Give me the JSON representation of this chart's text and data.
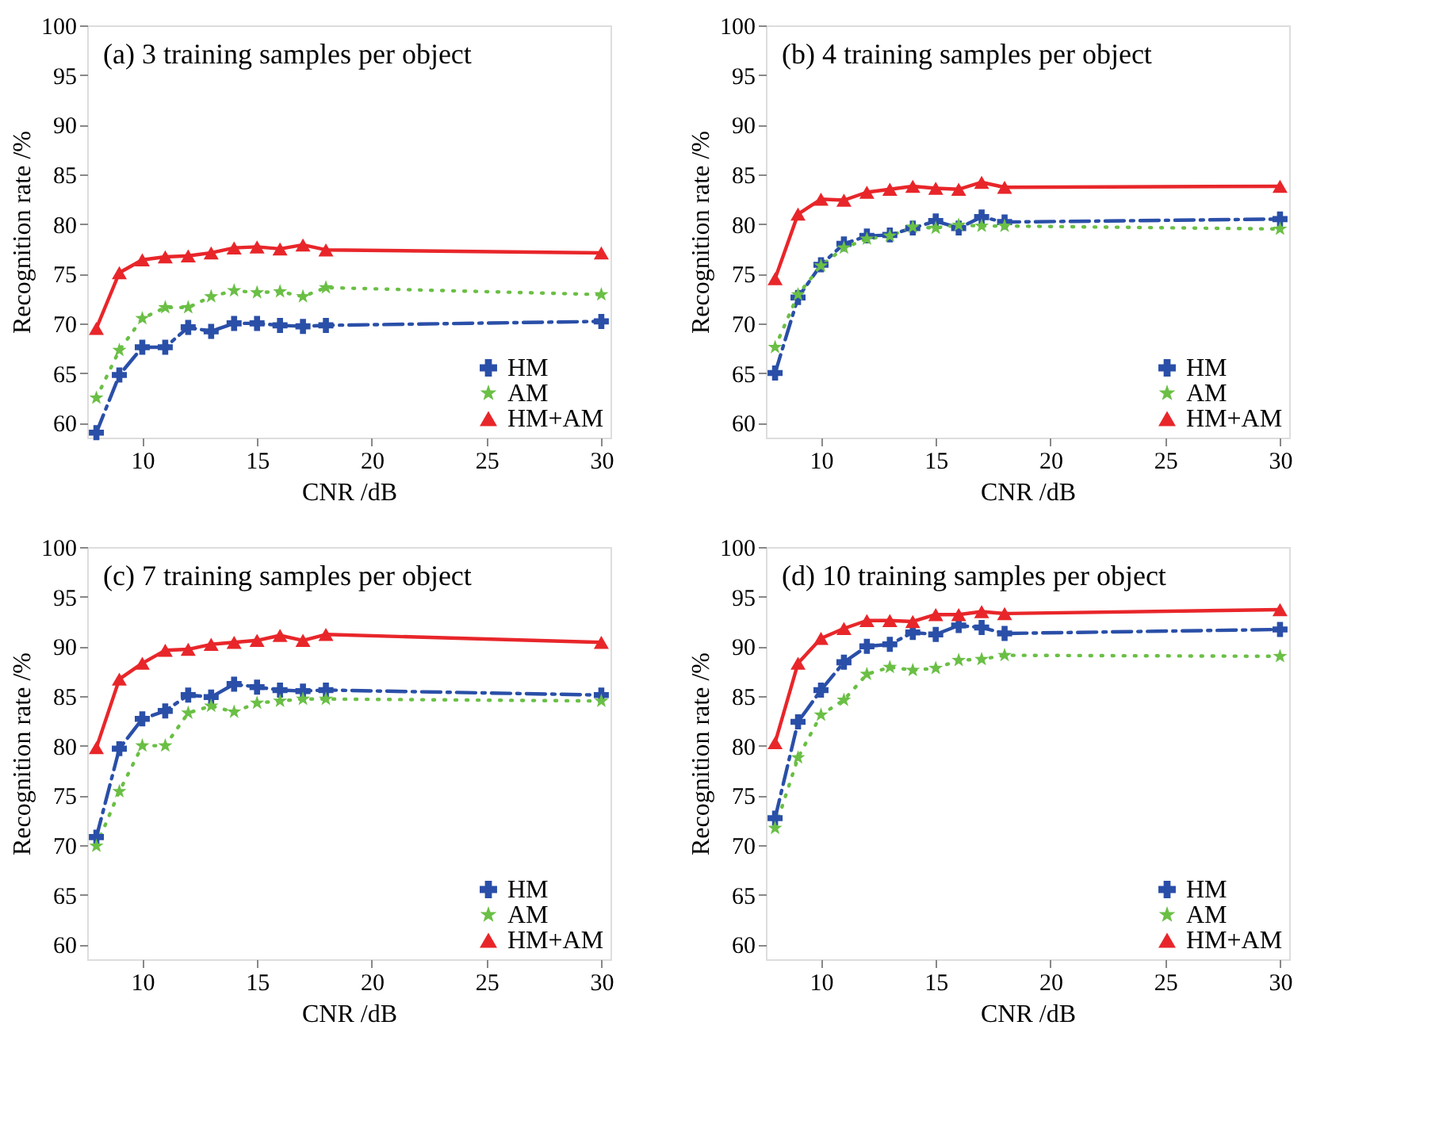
{
  "chart_data": [
    {
      "type": "line",
      "title": "(a) 3 training samples per object",
      "xlabel": "CNR /dB",
      "ylabel": "Recognition rate /%",
      "x": [
        8,
        9,
        10,
        11,
        12,
        13,
        14,
        15,
        16,
        17,
        18,
        30
      ],
      "xlim": [
        7.6,
        30.4
      ],
      "xticks": [
        10,
        15,
        20,
        25,
        30
      ],
      "ylim": [
        58.5,
        100
      ],
      "yticks": [
        60,
        65,
        70,
        75,
        80,
        85,
        90,
        95,
        100
      ],
      "grid": false,
      "legend": "bottom right",
      "series": [
        {
          "name": "HM",
          "color": "#2a4fa8",
          "marker": "cross",
          "line_style": "dashed",
          "values": [
            59.0,
            64.8,
            67.6,
            67.6,
            69.6,
            69.2,
            70.0,
            70.0,
            69.8,
            69.7,
            69.8,
            70.2
          ]
        },
        {
          "name": "AM",
          "color": "#6abf45",
          "marker": "star",
          "line_style": "dotted",
          "values": [
            62.5,
            67.3,
            70.5,
            71.6,
            71.6,
            72.7,
            73.3,
            73.1,
            73.2,
            72.7,
            73.6,
            72.9
          ]
        },
        {
          "name": "HM+AM",
          "color": "#e8262a",
          "marker": "triangle",
          "line_style": "solid",
          "values": [
            69.5,
            75.1,
            76.4,
            76.7,
            76.8,
            77.1,
            77.6,
            77.7,
            77.5,
            77.9,
            77.4,
            77.1
          ]
        }
      ]
    },
    {
      "type": "line",
      "title": "(b) 4 training samples per object",
      "xlabel": "CNR /dB",
      "ylabel": "Recognition rate /%",
      "x": [
        8,
        9,
        10,
        11,
        12,
        13,
        14,
        15,
        16,
        17,
        18,
        30
      ],
      "xlim": [
        7.6,
        30.4
      ],
      "xticks": [
        10,
        15,
        20,
        25,
        30
      ],
      "ylim": [
        58.5,
        100
      ],
      "yticks": [
        60,
        65,
        70,
        75,
        80,
        85,
        90,
        95,
        100
      ],
      "grid": false,
      "legend": "bottom right",
      "series": [
        {
          "name": "HM",
          "color": "#2a4fa8",
          "marker": "cross",
          "line_style": "dashed",
          "values": [
            65.0,
            72.6,
            75.9,
            78.0,
            78.8,
            78.9,
            79.6,
            80.3,
            79.6,
            80.7,
            80.2,
            80.5
          ]
        },
        {
          "name": "AM",
          "color": "#6abf45",
          "marker": "star",
          "line_style": "dotted",
          "values": [
            67.6,
            72.9,
            75.8,
            77.6,
            78.5,
            78.8,
            79.7,
            79.6,
            79.9,
            79.8,
            79.8,
            79.5
          ]
        },
        {
          "name": "HM+AM",
          "color": "#e8262a",
          "marker": "triangle",
          "line_style": "solid",
          "values": [
            74.5,
            81.0,
            82.5,
            82.4,
            83.2,
            83.5,
            83.8,
            83.6,
            83.5,
            84.2,
            83.7,
            83.8
          ]
        }
      ]
    },
    {
      "type": "line",
      "title": "(c) 7 training samples per object",
      "xlabel": "CNR /dB",
      "ylabel": "Recognition rate /%",
      "x": [
        8,
        9,
        10,
        11,
        12,
        13,
        14,
        15,
        16,
        17,
        18,
        30
      ],
      "xlim": [
        7.6,
        30.4
      ],
      "xticks": [
        10,
        15,
        20,
        25,
        30
      ],
      "ylim": [
        58.5,
        100
      ],
      "yticks": [
        60,
        65,
        70,
        75,
        80,
        85,
        90,
        95,
        100
      ],
      "grid": false,
      "legend": "bottom right",
      "series": [
        {
          "name": "HM",
          "color": "#2a4fa8",
          "marker": "cross",
          "line_style": "dashed",
          "values": [
            70.8,
            79.7,
            82.7,
            83.5,
            85.1,
            84.9,
            86.2,
            85.9,
            85.6,
            85.5,
            85.6,
            85.1
          ]
        },
        {
          "name": "AM",
          "color": "#6abf45",
          "marker": "star",
          "line_style": "dotted",
          "values": [
            69.9,
            75.4,
            80.0,
            80.0,
            83.3,
            84.0,
            83.4,
            84.3,
            84.5,
            84.7,
            84.7,
            84.5
          ]
        },
        {
          "name": "HM+AM",
          "color": "#e8262a",
          "marker": "triangle",
          "line_style": "solid",
          "values": [
            79.8,
            86.7,
            88.3,
            89.6,
            89.7,
            90.2,
            90.4,
            90.6,
            91.1,
            90.6,
            91.2,
            90.4
          ]
        }
      ]
    },
    {
      "type": "line",
      "title": "(d) 10 training samples per object",
      "xlabel": "CNR /dB",
      "ylabel": "Recognition rate /%",
      "x": [
        8,
        9,
        10,
        11,
        12,
        13,
        14,
        15,
        16,
        17,
        18,
        30
      ],
      "xlim": [
        7.6,
        30.4
      ],
      "xticks": [
        10,
        15,
        20,
        25,
        30
      ],
      "ylim": [
        58.5,
        100
      ],
      "yticks": [
        60,
        65,
        70,
        75,
        80,
        85,
        90,
        95,
        100
      ],
      "grid": false,
      "legend": "bottom right",
      "series": [
        {
          "name": "HM",
          "color": "#2a4fa8",
          "marker": "cross",
          "line_style": "dashed",
          "values": [
            72.7,
            82.4,
            85.6,
            88.4,
            90.0,
            90.2,
            91.4,
            91.2,
            92.1,
            91.9,
            91.3,
            91.7
          ]
        },
        {
          "name": "AM",
          "color": "#6abf45",
          "marker": "star",
          "line_style": "dotted",
          "values": [
            71.7,
            78.8,
            83.1,
            84.6,
            87.2,
            87.9,
            87.6,
            87.8,
            88.6,
            88.7,
            89.1,
            89.0
          ]
        },
        {
          "name": "HM+AM",
          "color": "#e8262a",
          "marker": "triangle",
          "line_style": "solid",
          "values": [
            80.3,
            88.3,
            90.8,
            91.8,
            92.6,
            92.6,
            92.5,
            93.2,
            93.2,
            93.5,
            93.3,
            93.7
          ]
        }
      ]
    }
  ]
}
